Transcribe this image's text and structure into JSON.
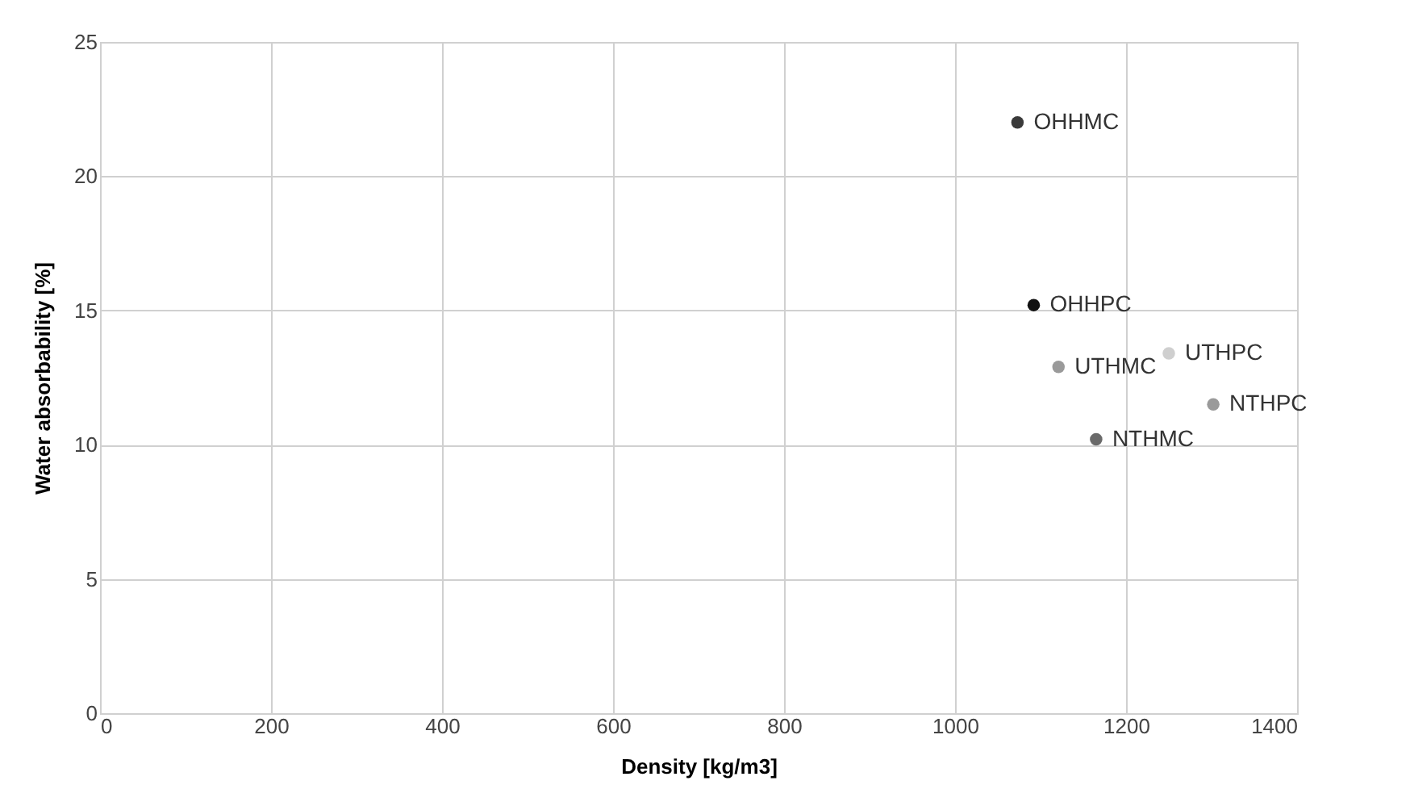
{
  "chart_data": {
    "type": "scatter",
    "xlabel": "Density [kg/m3]",
    "ylabel": "Water absorbability [%]",
    "xlim": [
      0,
      1400
    ],
    "xticks": [
      0,
      200,
      400,
      600,
      800,
      1000,
      1200,
      1400
    ],
    "ylim": [
      0,
      25
    ],
    "yticks": [
      0,
      5,
      10,
      15,
      20,
      25
    ],
    "grid": true,
    "legend": false,
    "marker": "circle",
    "series": [
      {
        "name": "OHHMC",
        "color": "#3a3a3a",
        "x": [
          1073
        ],
        "values": [
          22.0
        ]
      },
      {
        "name": "OHHPC",
        "color": "#111111",
        "x": [
          1092
        ],
        "values": [
          15.2
        ]
      },
      {
        "name": "UTHMC",
        "color": "#9a9a9a",
        "x": [
          1121
        ],
        "values": [
          12.9
        ]
      },
      {
        "name": "UTHPC",
        "color": "#cfcfcf",
        "x": [
          1250
        ],
        "values": [
          13.4
        ]
      },
      {
        "name": "NTHPC",
        "color": "#9a9a9a",
        "x": [
          1302
        ],
        "values": [
          11.5
        ]
      },
      {
        "name": "NTHMC",
        "color": "#6a6a6a",
        "x": [
          1165
        ],
        "values": [
          10.2
        ]
      }
    ]
  }
}
